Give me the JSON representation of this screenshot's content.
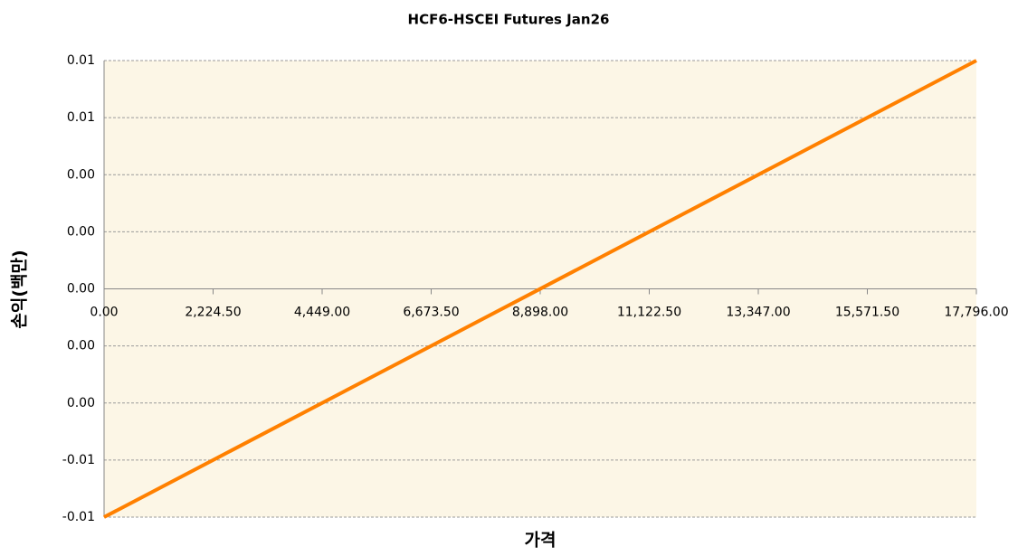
{
  "chart_data": {
    "type": "line",
    "title": "HCF6-HSCEI Futures Jan26",
    "x_label": "가격",
    "y_label": "손익(백만)",
    "x": [
      0,
      17796
    ],
    "series": [
      {
        "name": "HCF6-HSCEI Futures Jan26",
        "color": "#ff8000",
        "values": [
          -0.008,
          0.008
        ]
      }
    ],
    "xlim": [
      0,
      17796
    ],
    "ylim": [
      -0.008,
      0.008
    ],
    "xticks": [
      {
        "value": 0,
        "label": "0.00"
      },
      {
        "value": 2224.5,
        "label": "2,224.50"
      },
      {
        "value": 4449,
        "label": "4,449.00"
      },
      {
        "value": 6673.5,
        "label": "6,673.50"
      },
      {
        "value": 8898,
        "label": "8,898.00"
      },
      {
        "value": 11122.5,
        "label": "11,122.50"
      },
      {
        "value": 13347,
        "label": "13,347.00"
      },
      {
        "value": 15571.5,
        "label": "15,571.50"
      },
      {
        "value": 17796,
        "label": "17,796.00"
      }
    ],
    "yticks": [
      {
        "value": -0.008,
        "label": "-0.01"
      },
      {
        "value": -0.006,
        "label": "-0.01"
      },
      {
        "value": -0.004,
        "label": "0.00"
      },
      {
        "value": -0.002,
        "label": "0.00"
      },
      {
        "value": 0,
        "label": "0.00"
      },
      {
        "value": 0.002,
        "label": "0.00"
      },
      {
        "value": 0.004,
        "label": "0.00"
      },
      {
        "value": 0.006,
        "label": "0.01"
      },
      {
        "value": 0.008,
        "label": "0.01"
      }
    ],
    "grid": true
  }
}
